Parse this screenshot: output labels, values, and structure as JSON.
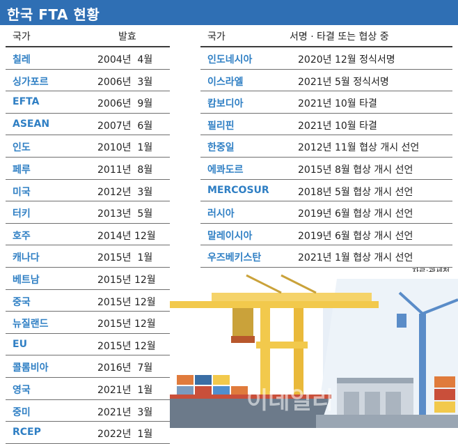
{
  "title": "한국 FTA 현황",
  "left": {
    "header": {
      "country": "국가",
      "date": "발효"
    },
    "rows": [
      {
        "country": "칠레",
        "date": "2004년  4월"
      },
      {
        "country": "싱가포르",
        "date": "2006년  3월"
      },
      {
        "country": "EFTA",
        "date": "2006년  9월"
      },
      {
        "country": "ASEAN",
        "date": "2007년  6월"
      },
      {
        "country": "인도",
        "date": "2010년  1월"
      },
      {
        "country": "페루",
        "date": "2011년  8월"
      },
      {
        "country": "미국",
        "date": "2012년  3월"
      },
      {
        "country": "터키",
        "date": "2013년  5월"
      },
      {
        "country": "호주",
        "date": "2014년 12월"
      },
      {
        "country": "캐나다",
        "date": "2015년  1월"
      },
      {
        "country": "베트남",
        "date": "2015년 12월"
      },
      {
        "country": "중국",
        "date": "2015년 12월"
      },
      {
        "country": "뉴질랜드",
        "date": "2015년 12월"
      },
      {
        "country": "EU",
        "date": "2015년 12월"
      },
      {
        "country": "콜롬비아",
        "date": "2016년  7월"
      },
      {
        "country": "영국",
        "date": "2021년  1월"
      },
      {
        "country": "중미",
        "date": "2021년  3월"
      },
      {
        "country": "RCEP",
        "date": "2022년  1월"
      }
    ]
  },
  "right": {
    "header": {
      "country": "국가",
      "status": "서명 · 타결 또는 협상 중"
    },
    "rows": [
      {
        "country": "인도네시아",
        "status": "2020년 12월 정식서명"
      },
      {
        "country": "이스라엘",
        "status": "2021년 5월 정식서명"
      },
      {
        "country": "캄보디아",
        "status": "2021년 10월 타결"
      },
      {
        "country": "필리핀",
        "status": "2021년 10월 타결"
      },
      {
        "country": "한중일",
        "status": "2012년 11월 협상 개시 선언"
      },
      {
        "country": "에콰도르",
        "status": "2015년 8월 협상 개시 선언"
      },
      {
        "country": "MERCOSUR",
        "status": "2018년 5월 협상 개시 선언"
      },
      {
        "country": "러시아",
        "status": "2019년 6월 협상 개시 선언"
      },
      {
        "country": "말레이시아",
        "status": "2019년 6월 협상 개시 선언"
      },
      {
        "country": "우즈베키스탄",
        "status": "2021년 1월 협상 개시 선언"
      }
    ]
  },
  "source": "자료:관세청",
  "watermark": "이데일리",
  "colors": {
    "title_bg": "#2f6fb4",
    "country_text": "#2f7fc4",
    "crane": "#f2c94c",
    "sky": "#dbe7f3"
  },
  "illustration": "port-cranes-cargo-ship"
}
